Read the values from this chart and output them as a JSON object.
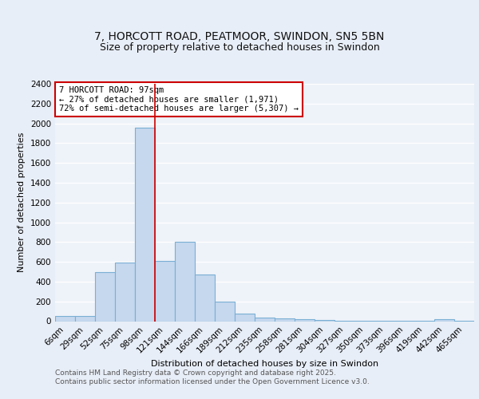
{
  "title_line1": "7, HORCOTT ROAD, PEATMOOR, SWINDON, SN5 5BN",
  "title_line2": "Size of property relative to detached houses in Swindon",
  "categories": [
    "6sqm",
    "29sqm",
    "52sqm",
    "75sqm",
    "98sqm",
    "121sqm",
    "144sqm",
    "166sqm",
    "189sqm",
    "212sqm",
    "235sqm",
    "258sqm",
    "281sqm",
    "304sqm",
    "327sqm",
    "350sqm",
    "373sqm",
    "396sqm",
    "419sqm",
    "442sqm",
    "465sqm"
  ],
  "values": [
    55,
    55,
    500,
    590,
    1960,
    610,
    800,
    470,
    195,
    75,
    40,
    25,
    17,
    10,
    6,
    3,
    2,
    2,
    1,
    18,
    1
  ],
  "bar_color": "#c5d8ee",
  "bar_edge_color": "#7aafd4",
  "vline_x": 4.5,
  "vline_color": "#cc0000",
  "annotation_text": "7 HORCOTT ROAD: 97sqm\n← 27% of detached houses are smaller (1,971)\n72% of semi-detached houses are larger (5,307) →",
  "annotation_box_color": "#ffffff",
  "annotation_box_edge_color": "#cc0000",
  "xlabel": "Distribution of detached houses by size in Swindon",
  "ylabel": "Number of detached properties",
  "ylim": [
    0,
    2400
  ],
  "yticks": [
    0,
    200,
    400,
    600,
    800,
    1000,
    1200,
    1400,
    1600,
    1800,
    2000,
    2200,
    2400
  ],
  "footer_line1": "Contains HM Land Registry data © Crown copyright and database right 2025.",
  "footer_line2": "Contains public sector information licensed under the Open Government Licence v3.0.",
  "background_color": "#e8eef7",
  "plot_bg_color": "#eef2f9",
  "grid_color": "#ffffff",
  "title_fontsize": 10,
  "subtitle_fontsize": 9,
  "axis_label_fontsize": 8,
  "tick_fontsize": 7.5,
  "annotation_fontsize": 7.5,
  "footer_fontsize": 6.5
}
